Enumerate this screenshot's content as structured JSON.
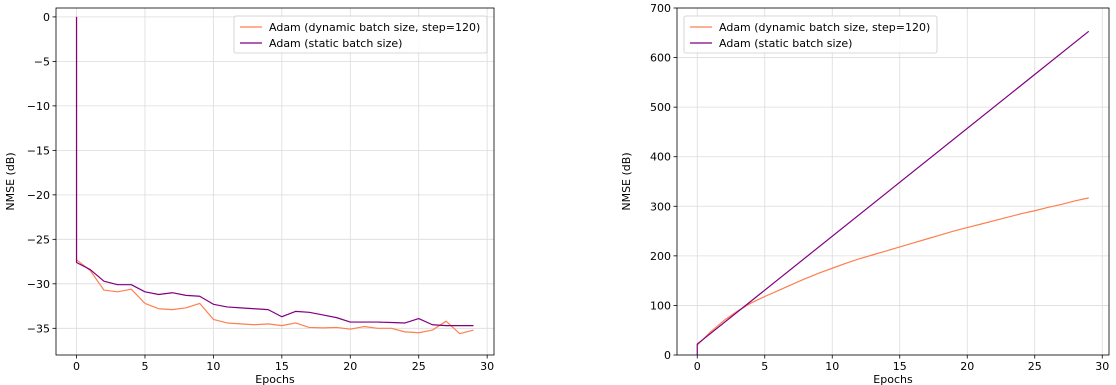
{
  "chart_data": [
    {
      "type": "line",
      "title": "",
      "xlabel": "Epochs",
      "ylabel": "NMSE (dB)",
      "xlim": [
        -1.5,
        30.5
      ],
      "ylim": [
        -38,
        1
      ],
      "xticks": [
        0,
        5,
        10,
        15,
        20,
        25,
        30
      ],
      "yticks": [
        0,
        -5,
        -10,
        -15,
        -20,
        -25,
        -30,
        -35
      ],
      "ytick_labels": [
        "0",
        "−5",
        "−10",
        "−15",
        "−20",
        "−25",
        "−30",
        "−35"
      ],
      "grid": true,
      "legend_position": "top-right",
      "series": [
        {
          "name": "Adam (dynamic batch size, step=120)",
          "color": "#ff7f50",
          "x": [
            0,
            0,
            1,
            2,
            3,
            4,
            5,
            6,
            7,
            8,
            9,
            10,
            11,
            12,
            13,
            14,
            15,
            16,
            17,
            18,
            19,
            20,
            21,
            22,
            23,
            24,
            25,
            26,
            27,
            28,
            29
          ],
          "y": [
            0,
            -27.3,
            -28.5,
            -30.7,
            -30.9,
            -30.6,
            -32.2,
            -32.8,
            -32.9,
            -32.7,
            -32.2,
            -34.0,
            -34.4,
            -34.5,
            -34.6,
            -34.5,
            -34.7,
            -34.4,
            -34.9,
            -34.95,
            -34.9,
            -35.1,
            -34.8,
            -35.0,
            -35.0,
            -35.4,
            -35.5,
            -35.2,
            -34.2,
            -35.6,
            -35.2
          ]
        },
        {
          "name": "Adam (static batch size)",
          "color": "#800080",
          "x": [
            0,
            0,
            1,
            2,
            3,
            4,
            5,
            6,
            7,
            8,
            9,
            10,
            11,
            12,
            13,
            14,
            15,
            16,
            17,
            18,
            19,
            20,
            21,
            22,
            23,
            24,
            25,
            26,
            27,
            28,
            29
          ],
          "y": [
            0,
            -27.6,
            -28.4,
            -29.7,
            -30.1,
            -30.1,
            -30.9,
            -31.2,
            -31.0,
            -31.3,
            -31.4,
            -32.3,
            -32.6,
            -32.7,
            -32.8,
            -32.9,
            -33.7,
            -33.1,
            -33.2,
            -33.5,
            -33.8,
            -34.3,
            -34.3,
            -34.3,
            -34.35,
            -34.4,
            -33.9,
            -34.6,
            -34.7,
            -34.7,
            -34.7
          ]
        }
      ]
    },
    {
      "type": "line",
      "title": "",
      "xlabel": "Epochs",
      "ylabel": "NMSE (dB)",
      "xlim": [
        -1.5,
        30.5
      ],
      "ylim": [
        0,
        700
      ],
      "xticks": [
        0,
        5,
        10,
        15,
        20,
        25,
        30
      ],
      "yticks": [
        0,
        100,
        200,
        300,
        400,
        500,
        600,
        700
      ],
      "ytick_labels": [
        "0",
        "100",
        "200",
        "300",
        "400",
        "500",
        "600",
        "700"
      ],
      "grid": true,
      "legend_position": "top-left",
      "series": [
        {
          "name": "Adam (dynamic batch size, step=120)",
          "color": "#ff7f50",
          "x": [
            0,
            1,
            2,
            3,
            4,
            5,
            6,
            7,
            8,
            9,
            10,
            11,
            12,
            13,
            14,
            15,
            16,
            17,
            18,
            19,
            20,
            21,
            22,
            23,
            24,
            25,
            26,
            27,
            28,
            29
          ],
          "y": [
            20,
            47,
            70,
            89,
            105,
            118,
            130,
            142,
            154,
            165,
            175,
            185,
            194,
            202,
            210,
            218,
            226,
            234,
            242,
            250,
            257,
            264,
            271,
            278,
            285,
            291,
            298,
            304,
            311,
            317
          ]
        },
        {
          "name": "Adam (static batch size)",
          "color": "#800080",
          "x": [
            0,
            0,
            29
          ],
          "y": [
            0,
            22,
            653
          ]
        }
      ]
    }
  ]
}
